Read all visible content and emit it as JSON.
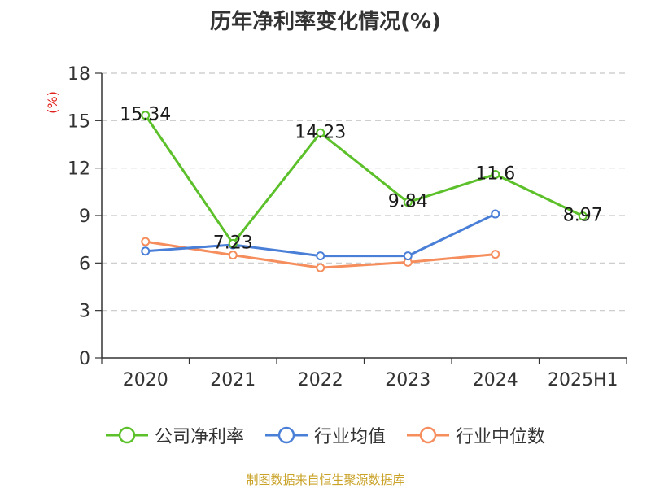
{
  "title": "历年净利率变化情况(%)",
  "source": "制图数据来自恒生聚源数据库",
  "chart_data": {
    "type": "line",
    "title": "历年净利率变化情况(%)",
    "ylabel": "(%)",
    "xlabel": "",
    "categories": [
      "2020",
      "2021",
      "2022",
      "2023",
      "2024",
      "2025H1"
    ],
    "ylim": [
      0,
      18
    ],
    "yticks": [
      0,
      3,
      6,
      9,
      12,
      15,
      18
    ],
    "grid": true,
    "legend_position": "bottom",
    "series": [
      {
        "name": "公司净利率",
        "color": "#5cc02a",
        "values": [
          15.34,
          7.23,
          14.23,
          9.84,
          11.6,
          8.97
        ],
        "labels": [
          "15.34",
          "7.23",
          "14.23",
          "9.84",
          "11.6",
          "8.97"
        ]
      },
      {
        "name": "行业均值",
        "color": "#4a7fd8",
        "values": [
          6.75,
          7.15,
          6.45,
          6.45,
          9.1,
          null
        ]
      },
      {
        "name": "行业中位数",
        "color": "#f58d5c",
        "values": [
          7.35,
          6.5,
          5.7,
          6.05,
          6.55,
          null
        ]
      }
    ]
  }
}
